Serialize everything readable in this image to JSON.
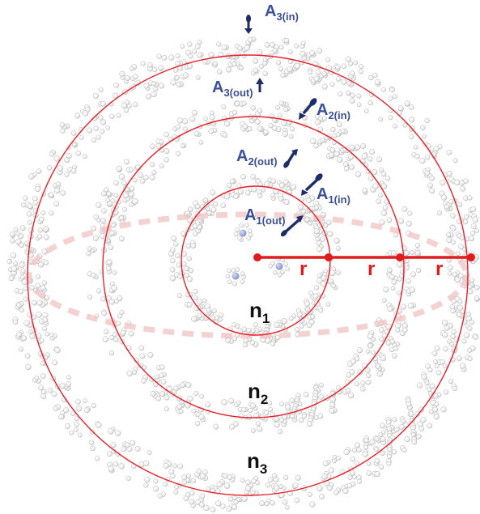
{
  "colors": {
    "shell_line": "#e8202a",
    "radius_line": "#e11b1b",
    "equator": "#f0b8b8",
    "label_blue": "#3b4f9a",
    "arrow": "#1f2c66",
    "atom_fill": "#f4f4f4",
    "atom_stroke": "#b9b9b9",
    "molecule_center": "#9aa6d8",
    "text_dark": "#111111"
  },
  "labels": {
    "a3_in": {
      "base": "A",
      "sub": "3(in)"
    },
    "a3_out": {
      "base": "A",
      "sub": "3(out)"
    },
    "a2_in": {
      "base": "A",
      "sub": "2(in)"
    },
    "a2_out": {
      "base": "A",
      "sub": "2(out)"
    },
    "a1_in": {
      "base": "A",
      "sub": "1(in)"
    },
    "a1_out": {
      "base": "A",
      "sub": "1(out)"
    },
    "n1": {
      "base": "n",
      "sub": "1"
    },
    "n2": {
      "base": "n",
      "sub": "2"
    },
    "n3": {
      "base": "n",
      "sub": "3"
    },
    "radius_1": "r",
    "radius_2": "r",
    "radius_3": "r"
  },
  "icons": {
    "arrow_in": "molecule-arrow-in-icon",
    "arrow_out": "molecule-arrow-out-icon"
  }
}
